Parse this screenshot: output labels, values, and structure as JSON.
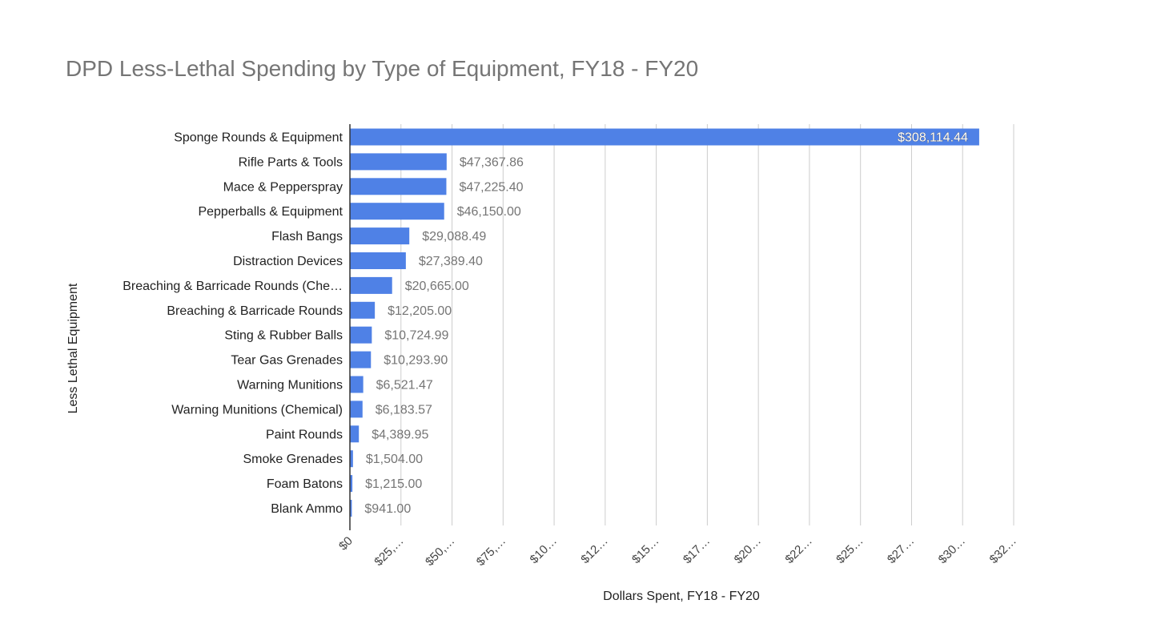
{
  "chart_data": {
    "type": "bar",
    "orientation": "horizontal",
    "title": "DPD Less-Lethal Spending by Type of Equipment, FY18 - FY20",
    "xlabel": "Dollars Spent, FY18 - FY20",
    "ylabel": "Less Lethal Equipment",
    "xlim": [
      0,
      325000
    ],
    "grid": true,
    "legend": "none",
    "categories": [
      "Sponge Rounds & Equipment",
      "Rifle Parts & Tools",
      "Mace & Pepperspray",
      "Pepperballs & Equipment",
      "Flash Bangs",
      "Distraction Devices",
      "Breaching & Barricade Rounds (Che…",
      "Breaching & Barricade Rounds",
      "Sting & Rubber Balls",
      "Tear Gas Grenades",
      "Warning Munitions",
      "Warning Munitions (Chemical)",
      "Paint Rounds",
      "Smoke Grenades",
      "Foam Batons",
      "Blank Ammo"
    ],
    "values": [
      308114.44,
      47367.86,
      47225.4,
      46150.0,
      29088.49,
      27389.4,
      20665.0,
      12205.0,
      10724.99,
      10293.9,
      6521.47,
      6183.57,
      4389.95,
      1504.0,
      1215.0,
      941.0
    ],
    "value_labels": [
      "$308,114.44",
      "$47,367.86",
      "$47,225.40",
      "$46,150.00",
      "$29,088.49",
      "$27,389.40",
      "$20,665.00",
      "$12,205.00",
      "$10,724.99",
      "$10,293.90",
      "$6,521.47",
      "$6,183.57",
      "$4,389.95",
      "$1,504.00",
      "$1,215.00",
      "$941.00"
    ],
    "ticks": [
      0,
      25000,
      50000,
      75000,
      100000,
      125000,
      150000,
      175000,
      200000,
      225000,
      250000,
      275000,
      300000,
      325000
    ],
    "tick_labels": [
      "$0",
      "$25,…",
      "$50,…",
      "$75,…",
      "$10…",
      "$12…",
      "$15…",
      "$17…",
      "$20…",
      "$22…",
      "$25…",
      "$27…",
      "$30…",
      "$32…"
    ],
    "colors": {
      "bar": "#4f81e6",
      "grid": "#cccccc",
      "axis": "#333333"
    }
  }
}
